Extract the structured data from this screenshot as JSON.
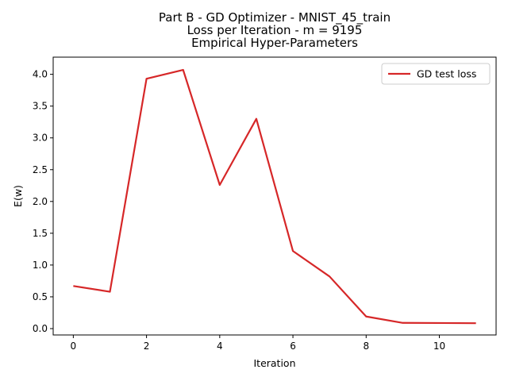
{
  "chart_data": {
    "type": "line",
    "title_lines": [
      "Part B - GD Optimizer - MNIST_45_train",
      "Loss per Iteration - m = 9195",
      "Empirical Hyper-Parameters"
    ],
    "xlabel": "Iteration",
    "ylabel": "E(w)",
    "x": [
      0,
      1,
      2,
      3,
      4,
      5,
      6,
      7,
      8,
      9,
      10,
      11
    ],
    "series": [
      {
        "name": "GD test loss",
        "color": "#d62728",
        "values": [
          0.67,
          0.58,
          3.93,
          4.07,
          2.26,
          3.3,
          1.22,
          0.82,
          0.19,
          0.09,
          0.088,
          0.085
        ]
      }
    ],
    "xlim": [
      -0.55,
      11.55
    ],
    "ylim": [
      -0.1,
      4.27
    ],
    "x_ticks": [
      0,
      2,
      4,
      6,
      8,
      10
    ],
    "y_ticks": [
      0.0,
      0.5,
      1.0,
      1.5,
      2.0,
      2.5,
      3.0,
      3.5,
      4.0
    ],
    "y_tick_labels": [
      "0.0",
      "0.5",
      "1.0",
      "1.5",
      "2.0",
      "2.5",
      "3.0",
      "3.5",
      "4.0"
    ],
    "grid": false,
    "legend_position": "upper-right"
  }
}
